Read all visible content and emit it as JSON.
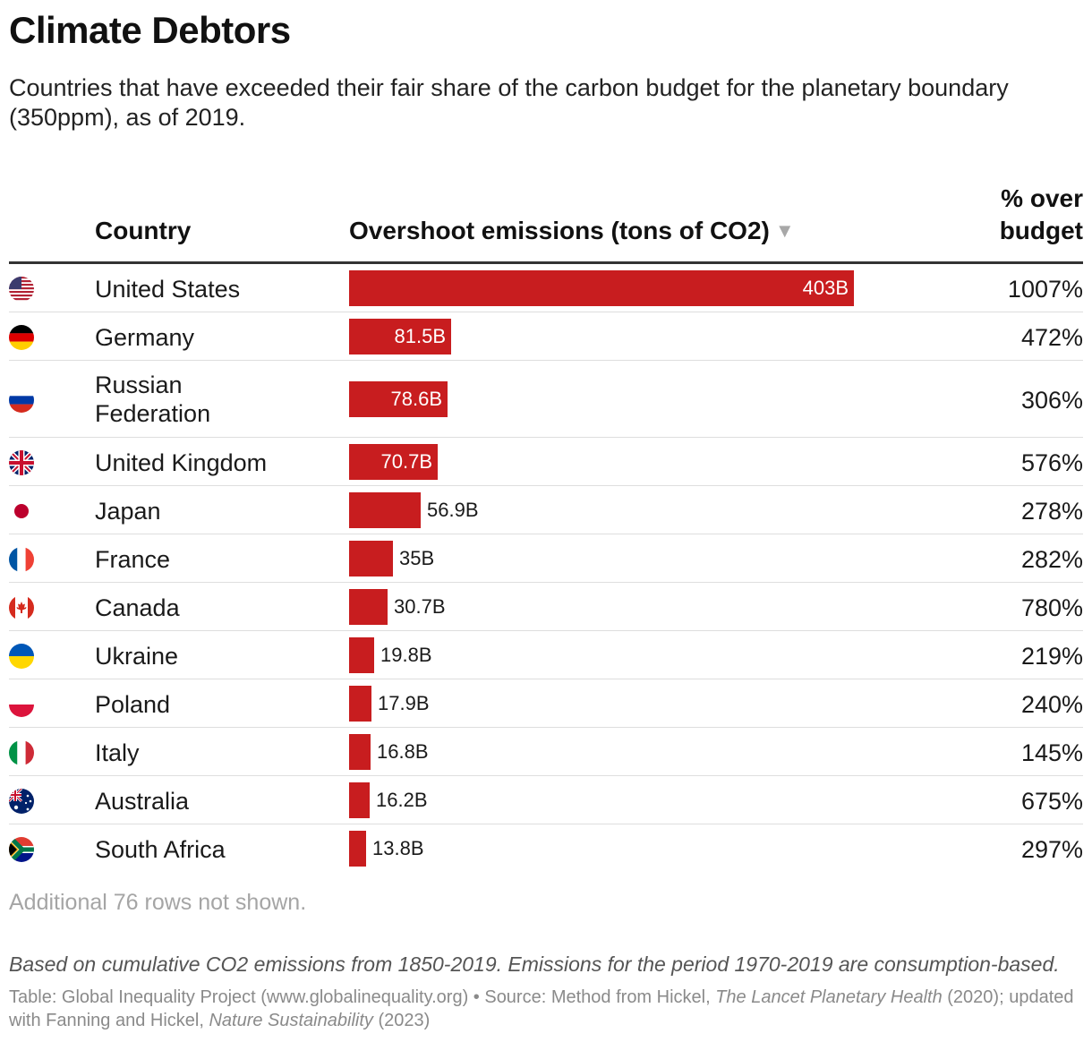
{
  "title": "Climate Debtors",
  "subtitle": "Countries that have exceeded their fair share of the carbon budget for the planetary boundary (350ppm), as of 2019.",
  "columns": {
    "country": "Country",
    "overshoot": "Overshoot emissions (tons of CO2)",
    "sort_icon": "▼",
    "pct_line1": "% over",
    "pct_line2": "budget"
  },
  "colors": {
    "bar": "#c81d1f",
    "rule": "#333333"
  },
  "chart_data": {
    "type": "table",
    "title": "Climate Debtors",
    "unit": "tons of CO2",
    "rows": [
      {
        "country": "United States",
        "flag": "us-flag-icon",
        "value": 403,
        "label": "403B",
        "pct": "1007%"
      },
      {
        "country": "Germany",
        "flag": "germany-flag-icon",
        "value": 81.5,
        "label": "81.5B",
        "pct": "472%"
      },
      {
        "country": "Russian Federation",
        "flag": "russia-flag-icon",
        "value": 78.6,
        "label": "78.6B",
        "pct": "306%"
      },
      {
        "country": "United Kingdom",
        "flag": "uk-flag-icon",
        "value": 70.7,
        "label": "70.7B",
        "pct": "576%"
      },
      {
        "country": "Japan",
        "flag": "japan-flag-icon",
        "value": 56.9,
        "label": "56.9B",
        "pct": "278%"
      },
      {
        "country": "France",
        "flag": "france-flag-icon",
        "value": 35,
        "label": "35B",
        "pct": "282%"
      },
      {
        "country": "Canada",
        "flag": "canada-flag-icon",
        "value": 30.7,
        "label": "30.7B",
        "pct": "780%"
      },
      {
        "country": "Ukraine",
        "flag": "ukraine-flag-icon",
        "value": 19.8,
        "label": "19.8B",
        "pct": "219%"
      },
      {
        "country": "Poland",
        "flag": "poland-flag-icon",
        "value": 17.9,
        "label": "17.9B",
        "pct": "240%"
      },
      {
        "country": "Italy",
        "flag": "italy-flag-icon",
        "value": 16.8,
        "label": "16.8B",
        "pct": "145%"
      },
      {
        "country": "Australia",
        "flag": "australia-flag-icon",
        "value": 16.2,
        "label": "16.2B",
        "pct": "675%"
      },
      {
        "country": "South Africa",
        "flag": "south-africa-flag-icon",
        "value": 13.8,
        "label": "13.8B",
        "pct": "297%"
      }
    ]
  },
  "more_rows": "Additional 76 rows not shown.",
  "note": "Based on cumulative CO2 emissions from 1850-2019. Emissions for the period 1970-2019 are consumption-based.",
  "source": {
    "part1": "Table: Global Inequality Project (www.globalinequality.org) • Source: Method from Hickel, ",
    "journal1": "The Lancet Planetary Health",
    "part2": " (2020); updated with Fanning and Hickel, ",
    "journal2": "Nature Sustainability",
    "part3": " (2023)"
  }
}
